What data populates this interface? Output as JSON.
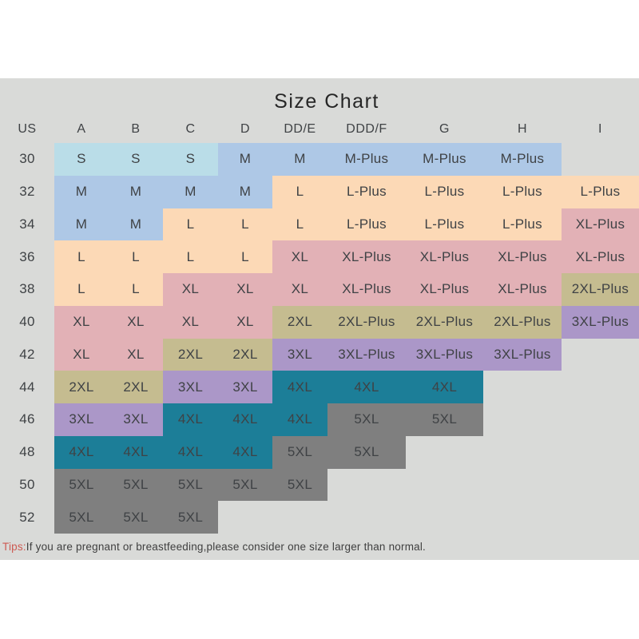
{
  "title": "Size Chart",
  "chart_data": {
    "type": "table",
    "title": "Size Chart",
    "columns": [
      "US",
      "A",
      "B",
      "C",
      "D",
      "DD/E",
      "DDD/F",
      "G",
      "H",
      "I"
    ],
    "rows": [
      {
        "us": "30",
        "cells": [
          "S",
          "S",
          "S",
          "M",
          "M",
          "M-Plus",
          "M-Plus",
          "M-Plus",
          ""
        ]
      },
      {
        "us": "32",
        "cells": [
          "M",
          "M",
          "M",
          "M",
          "L",
          "L-Plus",
          "L-Plus",
          "L-Plus",
          "L-Plus"
        ]
      },
      {
        "us": "34",
        "cells": [
          "M",
          "M",
          "L",
          "L",
          "L",
          "L-Plus",
          "L-Plus",
          "L-Plus",
          "XL-Plus"
        ]
      },
      {
        "us": "36",
        "cells": [
          "L",
          "L",
          "L",
          "L",
          "XL",
          "XL-Plus",
          "XL-Plus",
          "XL-Plus",
          "XL-Plus"
        ]
      },
      {
        "us": "38",
        "cells": [
          "L",
          "L",
          "XL",
          "XL",
          "XL",
          "XL-Plus",
          "XL-Plus",
          "XL-Plus",
          "2XL-Plus"
        ]
      },
      {
        "us": "40",
        "cells": [
          "XL",
          "XL",
          "XL",
          "XL",
          "2XL",
          "2XL-Plus",
          "2XL-Plus",
          "2XL-Plus",
          "3XL-Plus"
        ]
      },
      {
        "us": "42",
        "cells": [
          "XL",
          "XL",
          "2XL",
          "2XL",
          "3XL",
          "3XL-Plus",
          "3XL-Plus",
          "3XL-Plus",
          ""
        ]
      },
      {
        "us": "44",
        "cells": [
          "2XL",
          "2XL",
          "3XL",
          "3XL",
          "4XL",
          "4XL",
          "4XL",
          "",
          ""
        ]
      },
      {
        "us": "46",
        "cells": [
          "3XL",
          "3XL",
          "4XL",
          "4XL",
          "4XL",
          "5XL",
          "5XL",
          "",
          ""
        ]
      },
      {
        "us": "48",
        "cells": [
          "4XL",
          "4XL",
          "4XL",
          "4XL",
          "5XL",
          "5XL",
          "",
          "",
          ""
        ]
      },
      {
        "us": "50",
        "cells": [
          "5XL",
          "5XL",
          "5XL",
          "5XL",
          "5XL",
          "",
          "",
          "",
          ""
        ]
      },
      {
        "us": "52",
        "cells": [
          "5XL",
          "5XL",
          "5XL",
          "",
          "",
          "",
          "",
          "",
          ""
        ]
      }
    ]
  },
  "note": {
    "label": "Tips:",
    "text": "If you are pregnant or breastfeeding,please consider one size larger than normal."
  },
  "colors": {
    "panel_bg": "#d9dad8",
    "page_bg": "#ffffff",
    "title_text": "#262626",
    "cell_text": "#3f4245",
    "tips_label": "#cd5a52",
    "tips_text": "#3f3f3f",
    "size_palette": {
      "S": "#badde8",
      "M": "#aec8e6",
      "L": "#fcd9b6",
      "XL": "#e2b1b6",
      "2XL": "#c5bc90",
      "3XL": "#ab97c8",
      "4XL": "#1c7e98",
      "5XL": "#7f7f7f"
    }
  }
}
